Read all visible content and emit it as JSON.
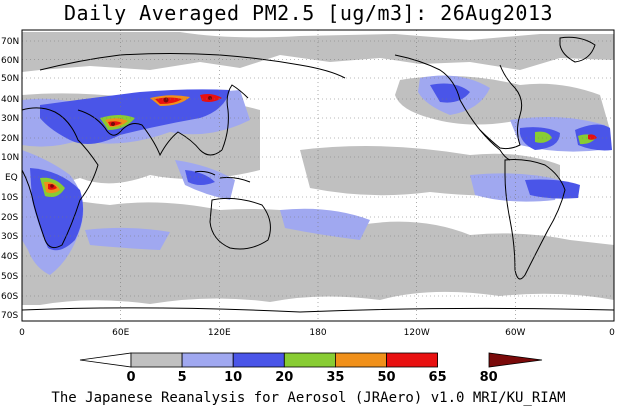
{
  "title": "Daily Averaged PM2.5 [ug/m3]: 26Aug2013",
  "footer": "The Japanese Reanalysis for Aerosol (JRAero) v1.0 MRI/KU_RIAM",
  "lat_labels": [
    "70N",
    "60N",
    "50N",
    "40N",
    "30N",
    "20N",
    "10N",
    "EQ",
    "10S",
    "20S",
    "30S",
    "40S",
    "50S",
    "60S",
    "70S"
  ],
  "lon_labels": [
    "0",
    "60E",
    "120E",
    "180",
    "120W",
    "60W",
    "0"
  ],
  "colorbar": {
    "ticks": [
      "0",
      "5",
      "10",
      "20",
      "35",
      "50",
      "65",
      "80"
    ],
    "colors": [
      "#ffffff",
      "#c0c0c0",
      "#a0a8f0",
      "#4a55e8",
      "#88cc33",
      "#f0901a",
      "#e81010",
      "#7a0a0a"
    ]
  },
  "legend_colors": {
    "white": "#ffffff",
    "gray": "#c0c0c0",
    "lightblue": "#a0a8f0",
    "blue": "#4a55e8",
    "green": "#88cc33",
    "orange": "#f0901a",
    "red": "#e81010",
    "darkred": "#7a0a0a"
  }
}
